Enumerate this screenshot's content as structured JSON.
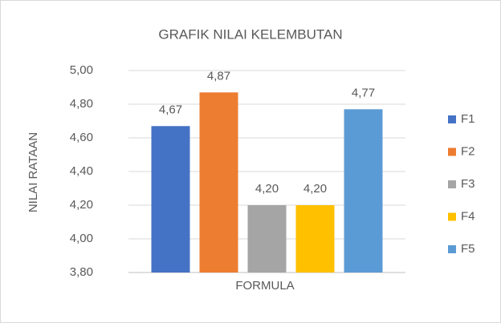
{
  "chart_data": {
    "type": "bar",
    "title": "GRAFIK NILAI KELEMBUTAN",
    "x_label": "FORMULA",
    "y_label": "NILAI RATAAN",
    "categories": [
      null
    ],
    "series": [
      {
        "name": "F1",
        "color": "#4472c4",
        "values": [
          4.67
        ],
        "value_labels": [
          "4,67"
        ]
      },
      {
        "name": "F2",
        "color": "#ed7d31",
        "values": [
          4.87
        ],
        "value_labels": [
          "4,87"
        ]
      },
      {
        "name": "F3",
        "color": "#a5a5a5",
        "values": [
          4.2
        ],
        "value_labels": [
          "4,20"
        ]
      },
      {
        "name": "F4",
        "color": "#ffc000",
        "values": [
          4.2
        ],
        "value_labels": [
          "4,20"
        ]
      },
      {
        "name": "F5",
        "color": "#5b9bd5",
        "values": [
          4.77
        ],
        "value_labels": [
          "4,77"
        ]
      }
    ],
    "ylim": [
      3.8,
      5.0
    ],
    "yticks": [
      {
        "value": 3.8,
        "label": "3,80"
      },
      {
        "value": 4.0,
        "label": "4,00"
      },
      {
        "value": 4.2,
        "label": "4,20"
      },
      {
        "value": 4.4,
        "label": "4,40"
      },
      {
        "value": 4.6,
        "label": "4,60"
      },
      {
        "value": 4.8,
        "label": "4,80"
      },
      {
        "value": 5.0,
        "label": "5,00"
      }
    ],
    "grid": true,
    "legend": "right"
  }
}
